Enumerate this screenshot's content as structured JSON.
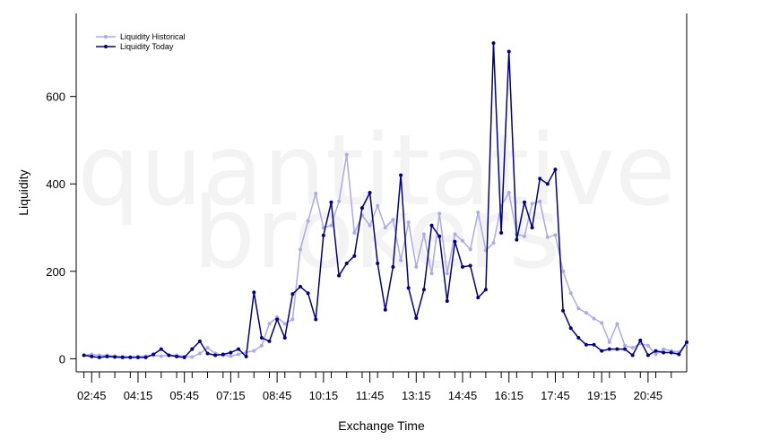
{
  "chart_data": {
    "type": "line",
    "title": "",
    "xlabel": "Exchange Time",
    "ylabel": "Liquidity",
    "watermark": [
      "quantitative",
      "brokers"
    ],
    "ylim": [
      -30,
      790
    ],
    "yticks": [
      0,
      200,
      400,
      600
    ],
    "xlim": [
      0,
      79
    ],
    "x_minor_ticks": [
      1,
      3,
      5,
      7,
      9,
      11,
      13,
      15,
      17,
      19,
      21,
      23,
      25,
      27,
      29,
      31,
      33,
      35,
      37,
      39,
      41,
      43,
      45,
      47,
      49,
      51,
      53,
      55,
      57,
      59,
      61,
      63,
      65,
      67,
      69,
      71,
      73,
      75,
      77
    ],
    "x_tick_labels": [
      {
        "x": 2,
        "label": "02:45"
      },
      {
        "x": 8,
        "label": "04:15"
      },
      {
        "x": 14,
        "label": "05:45"
      },
      {
        "x": 20,
        "label": "07:15"
      },
      {
        "x": 26,
        "label": "08:45"
      },
      {
        "x": 32,
        "label": "10:15"
      },
      {
        "x": 38,
        "label": "11:45"
      },
      {
        "x": 44,
        "label": "13:15"
      },
      {
        "x": 50,
        "label": "14:45"
      },
      {
        "x": 56,
        "label": "16:15"
      },
      {
        "x": 62,
        "label": "17:45"
      },
      {
        "x": 68,
        "label": "19:15"
      },
      {
        "x": 74,
        "label": "20:45"
      }
    ],
    "grid": false,
    "legend_position": "top-left",
    "series": [
      {
        "name": "Liquidity Historical",
        "color": "#aaaaee",
        "values": [
          8,
          10,
          8,
          8,
          6,
          5,
          4,
          5,
          6,
          8,
          6,
          8,
          8,
          5,
          4,
          12,
          25,
          12,
          8,
          6,
          10,
          15,
          18,
          30,
          80,
          95,
          80,
          90,
          250,
          315,
          378,
          300,
          305,
          360,
          467,
          288,
          328,
          305,
          350,
          300,
          318,
          225,
          312,
          210,
          285,
          195,
          332,
          195,
          285,
          270,
          250,
          335,
          248,
          265,
          350,
          380,
          285,
          280,
          355,
          360,
          278,
          283,
          200,
          150,
          115,
          105,
          92,
          82,
          38,
          80,
          30,
          25,
          35,
          30,
          10,
          22,
          18,
          15,
          35
        ]
      },
      {
        "name": "Liquidity Today",
        "color": "#00008b",
        "values": [
          8,
          5,
          3,
          5,
          4,
          3,
          3,
          3,
          3,
          10,
          22,
          8,
          5,
          3,
          22,
          40,
          12,
          8,
          10,
          14,
          22,
          5,
          152,
          48,
          40,
          90,
          48,
          148,
          165,
          150,
          90,
          282,
          358,
          190,
          218,
          235,
          345,
          380,
          218,
          112,
          210,
          420,
          162,
          93,
          158,
          305,
          280,
          132,
          268,
          210,
          213,
          140,
          158,
          722,
          288,
          703,
          272,
          358,
          300,
          412,
          400,
          433,
          110,
          70,
          48,
          32,
          32,
          18,
          22,
          22,
          22,
          8,
          42,
          8,
          18,
          14,
          14,
          10,
          38
        ]
      }
    ]
  }
}
